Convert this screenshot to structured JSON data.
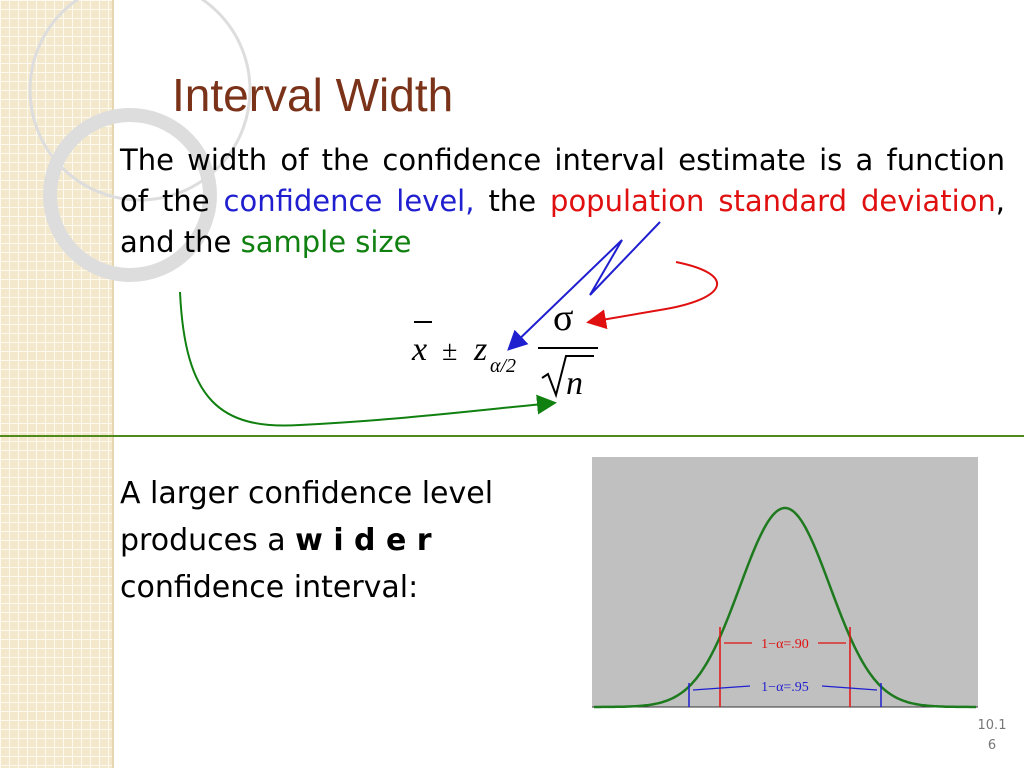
{
  "title": "Interval Width",
  "intro": {
    "runs": [
      {
        "text": "The width of the confidence interval estimate is a function of the ",
        "color": "#000000"
      },
      {
        "text": "confidence level,",
        "color": "#1f1fd0"
      },
      {
        "text": " the ",
        "color": "#000000"
      },
      {
        "text": "population standard deviation",
        "color": "#e01010"
      },
      {
        "text": ", and the ",
        "color": "#000000"
      },
      {
        "text": "sample size",
        "color": "#108010"
      }
    ]
  },
  "formula": {
    "mean": "x",
    "plus_minus": "±",
    "z": "z",
    "subscript": "α/2",
    "numerator": "σ",
    "denominator": "n"
  },
  "statement": {
    "runs": [
      {
        "text": "A larger confidence level produces a ",
        "bold": false
      },
      {
        "text": "w i d e r",
        "bold": true
      },
      {
        "text": " confidence interval:",
        "bold": false
      }
    ]
  },
  "figure": {
    "inner_label": "1−α=.90",
    "outer_label": "1−α=.95"
  },
  "slide_number": "10.16"
}
